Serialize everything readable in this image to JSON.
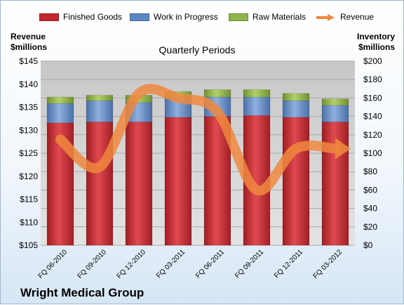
{
  "chart_data": {
    "type": "bar",
    "subtitle": "Quarterly Periods",
    "company": "Wright Medical Group",
    "ylabel_left": [
      "Revenue",
      "$millions"
    ],
    "ylabel_right": [
      "Inventory",
      "$millions"
    ],
    "ylim_left": [
      105,
      145
    ],
    "ylim_right": [
      0,
      200
    ],
    "yticks_left": [
      "$105",
      "$110",
      "$115",
      "$120",
      "$125",
      "$130",
      "$135",
      "$140",
      "$145"
    ],
    "yticks_right": [
      "$0",
      "$20",
      "$40",
      "$60",
      "$80",
      "$100",
      "$120",
      "$140",
      "$160",
      "$180",
      "$200"
    ],
    "categories": [
      "FQ 06-2010",
      "FQ 09-2010",
      "FQ 12-2010",
      "FQ 03-2011",
      "FQ 06-2011",
      "FQ 09-2011",
      "FQ 12-2011",
      "FQ 03-2012"
    ],
    "stacked": true,
    "grid": true,
    "legend": "top",
    "series": [
      {
        "name": "Finished Goods",
        "axis": "right",
        "color": "#c0272d",
        "values": [
          133,
          134,
          134,
          139,
          140,
          141,
          139,
          134
        ]
      },
      {
        "name": "Work in Progress",
        "axis": "right",
        "color": "#5b86c5",
        "values": [
          21,
          23,
          21,
          21,
          21,
          20,
          18,
          18
        ]
      },
      {
        "name": "Raw Materials",
        "axis": "right",
        "color": "#8fb44a",
        "values": [
          7,
          6,
          8,
          7,
          8,
          8,
          8,
          7
        ]
      }
    ],
    "line_series": {
      "name": "Revenue",
      "axis": "left",
      "color": "#f0883e",
      "values": [
        128,
        122,
        138,
        137,
        134,
        117,
        126,
        126
      ]
    }
  }
}
